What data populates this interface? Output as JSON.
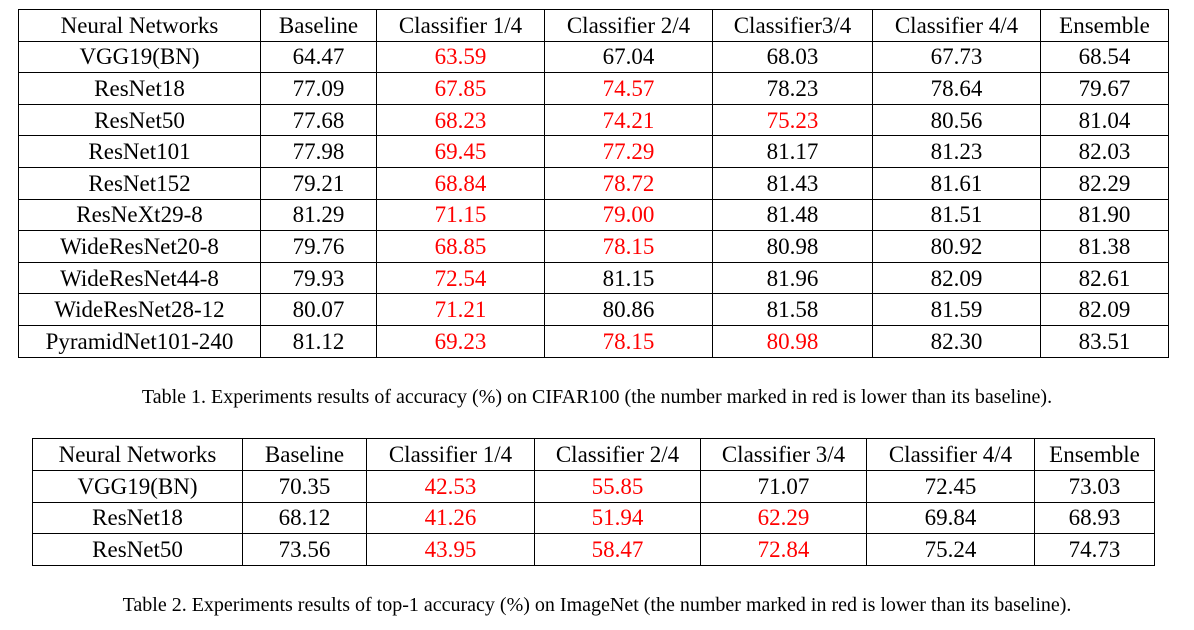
{
  "table1": {
    "header": [
      "Neural Networks",
      "Baseline",
      "Classifier 1/4",
      "Classifier 2/4",
      "Classifier3/4",
      "Classifier 4/4",
      "Ensemble"
    ],
    "rows": [
      [
        "VGG19(BN)",
        "64.47",
        "63.59",
        "67.04",
        "68.03",
        "67.73",
        "68.54"
      ],
      [
        "ResNet18",
        "77.09",
        "67.85",
        "74.57",
        "78.23",
        "78.64",
        "79.67"
      ],
      [
        "ResNet50",
        "77.68",
        "68.23",
        "74.21",
        "75.23",
        "80.56",
        "81.04"
      ],
      [
        "ResNet101",
        "77.98",
        "69.45",
        "77.29",
        "81.17",
        "81.23",
        "82.03"
      ],
      [
        "ResNet152",
        "79.21",
        "68.84",
        "78.72",
        "81.43",
        "81.61",
        "82.29"
      ],
      [
        "ResNeXt29-8",
        "81.29",
        "71.15",
        "79.00",
        "81.48",
        "81.51",
        "81.90"
      ],
      [
        "WideResNet20-8",
        "79.76",
        "68.85",
        "78.15",
        "80.98",
        "80.92",
        "81.38"
      ],
      [
        "WideResNet44-8",
        "79.93",
        "72.54",
        "81.15",
        "81.96",
        "82.09",
        "82.61"
      ],
      [
        "WideResNet28-12",
        "80.07",
        "71.21",
        "80.86",
        "81.58",
        "81.59",
        "82.09"
      ],
      [
        "PyramidNet101-240",
        "81.12",
        "69.23",
        "78.15",
        "80.98",
        "82.30",
        "83.51"
      ]
    ],
    "caption": "Table 1. Experiments results of accuracy (%) on CIFAR100 (the number marked in red is lower than its baseline)."
  },
  "table2": {
    "header": [
      "Neural Networks",
      "Baseline",
      "Classifier 1/4",
      "Classifier 2/4",
      "Classifier 3/4",
      "Classifier 4/4",
      "Ensemble"
    ],
    "rows": [
      [
        "VGG19(BN)",
        "70.35",
        "42.53",
        "55.85",
        "71.07",
        "72.45",
        "73.03"
      ],
      [
        "ResNet18",
        "68.12",
        "41.26",
        "51.94",
        "62.29",
        "69.84",
        "68.93"
      ],
      [
        "ResNet50",
        "73.56",
        "43.95",
        "58.47",
        "72.84",
        "75.24",
        "74.73"
      ]
    ],
    "caption": "Table 2. Experiments results of top-1 accuracy (%) on ImageNet (the number marked in red is lower than its baseline)."
  },
  "colors": {
    "below_baseline": "#ff0000",
    "text": "#000000"
  }
}
